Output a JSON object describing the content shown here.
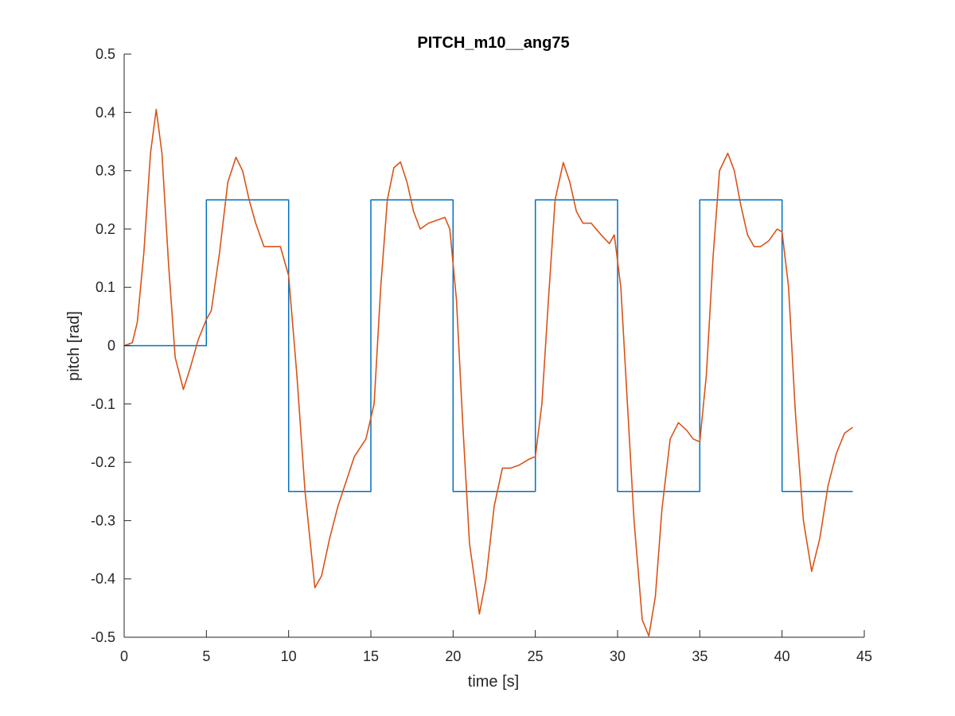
{
  "chart_data": {
    "type": "line",
    "title": "PITCH_m10__ang75",
    "xlabel": "time [s]",
    "ylabel": "pitch [rad]",
    "xlim": [
      0,
      45
    ],
    "ylim": [
      -0.5,
      0.5
    ],
    "xticks": [
      0,
      5,
      10,
      15,
      20,
      25,
      30,
      35,
      40,
      45
    ],
    "xtick_labels": [
      "0",
      "5",
      "10",
      "15",
      "20",
      "25",
      "30",
      "35",
      "40",
      "45"
    ],
    "yticks": [
      -0.5,
      -0.4,
      -0.3,
      -0.2,
      -0.1,
      0,
      0.1,
      0.2,
      0.3,
      0.4,
      0.5
    ],
    "ytick_labels": [
      "-0.5",
      "-0.4",
      "-0.3",
      "-0.2",
      "-0.1",
      "0",
      "0.1",
      "0.2",
      "0.3",
      "0.4",
      "0.5"
    ],
    "grid": false,
    "legend": "none",
    "series": [
      {
        "color": "#0072BD",
        "step": true,
        "x": [
          0,
          5,
          5,
          10,
          10,
          15,
          15,
          20,
          20,
          25,
          25,
          30,
          30,
          35,
          35,
          40,
          40,
          44.3
        ],
        "y": [
          0,
          0,
          0.25,
          0.25,
          -0.25,
          -0.25,
          0.25,
          0.25,
          -0.25,
          -0.25,
          0.25,
          0.25,
          -0.25,
          -0.25,
          0.25,
          0.25,
          -0.25,
          -0.25
        ]
      },
      {
        "color": "#D95319",
        "x": [
          0,
          0.5,
          0.8,
          1.2,
          1.6,
          1.95,
          2.3,
          2.7,
          3.1,
          3.6,
          4.0,
          4.5,
          5.0,
          5.3,
          5.8,
          6.3,
          6.8,
          7.2,
          7.6,
          8.0,
          8.5,
          9.0,
          9.5,
          10.0,
          10.5,
          11.0,
          11.6,
          12.0,
          12.5,
          13.0,
          14.0,
          14.7,
          15.2,
          15.6,
          16.0,
          16.4,
          16.8,
          17.2,
          17.6,
          18.0,
          18.5,
          19.0,
          19.5,
          19.8,
          20.2,
          20.6,
          21.0,
          21.6,
          22.0,
          22.5,
          23.0,
          23.5,
          24.0,
          24.6,
          25.0,
          25.4,
          25.8,
          26.2,
          26.7,
          27.1,
          27.5,
          27.9,
          28.4,
          29.0,
          29.5,
          29.8,
          30.2,
          30.6,
          31.0,
          31.5,
          31.9,
          32.3,
          32.7,
          33.2,
          33.7,
          34.2,
          34.6,
          35.0,
          35.4,
          35.8,
          36.2,
          36.7,
          37.1,
          37.5,
          37.9,
          38.3,
          38.7,
          39.2,
          39.7,
          40.0,
          40.4,
          40.8,
          41.3,
          41.8,
          42.3,
          42.8,
          43.3,
          43.8,
          44.3
        ],
        "y": [
          0,
          0.005,
          0.04,
          0.16,
          0.33,
          0.405,
          0.33,
          0.14,
          -0.02,
          -0.075,
          -0.04,
          0.01,
          0.045,
          0.06,
          0.16,
          0.28,
          0.323,
          0.3,
          0.25,
          0.21,
          0.17,
          0.17,
          0.17,
          0.12,
          -0.05,
          -0.25,
          -0.415,
          -0.395,
          -0.33,
          -0.275,
          -0.19,
          -0.16,
          -0.1,
          0.1,
          0.25,
          0.305,
          0.315,
          0.28,
          0.23,
          0.2,
          0.21,
          0.215,
          0.22,
          0.2,
          0.08,
          -0.14,
          -0.34,
          -0.46,
          -0.4,
          -0.275,
          -0.21,
          -0.21,
          -0.205,
          -0.195,
          -0.19,
          -0.1,
          0.08,
          0.25,
          0.314,
          0.28,
          0.23,
          0.21,
          0.21,
          0.19,
          0.175,
          0.19,
          0.1,
          -0.1,
          -0.3,
          -0.47,
          -0.498,
          -0.43,
          -0.28,
          -0.16,
          -0.132,
          -0.145,
          -0.16,
          -0.165,
          -0.05,
          0.15,
          0.3,
          0.33,
          0.3,
          0.24,
          0.19,
          0.17,
          0.17,
          0.18,
          0.2,
          0.195,
          0.1,
          -0.11,
          -0.3,
          -0.387,
          -0.33,
          -0.24,
          -0.185,
          -0.15,
          -0.14
        ]
      }
    ]
  }
}
